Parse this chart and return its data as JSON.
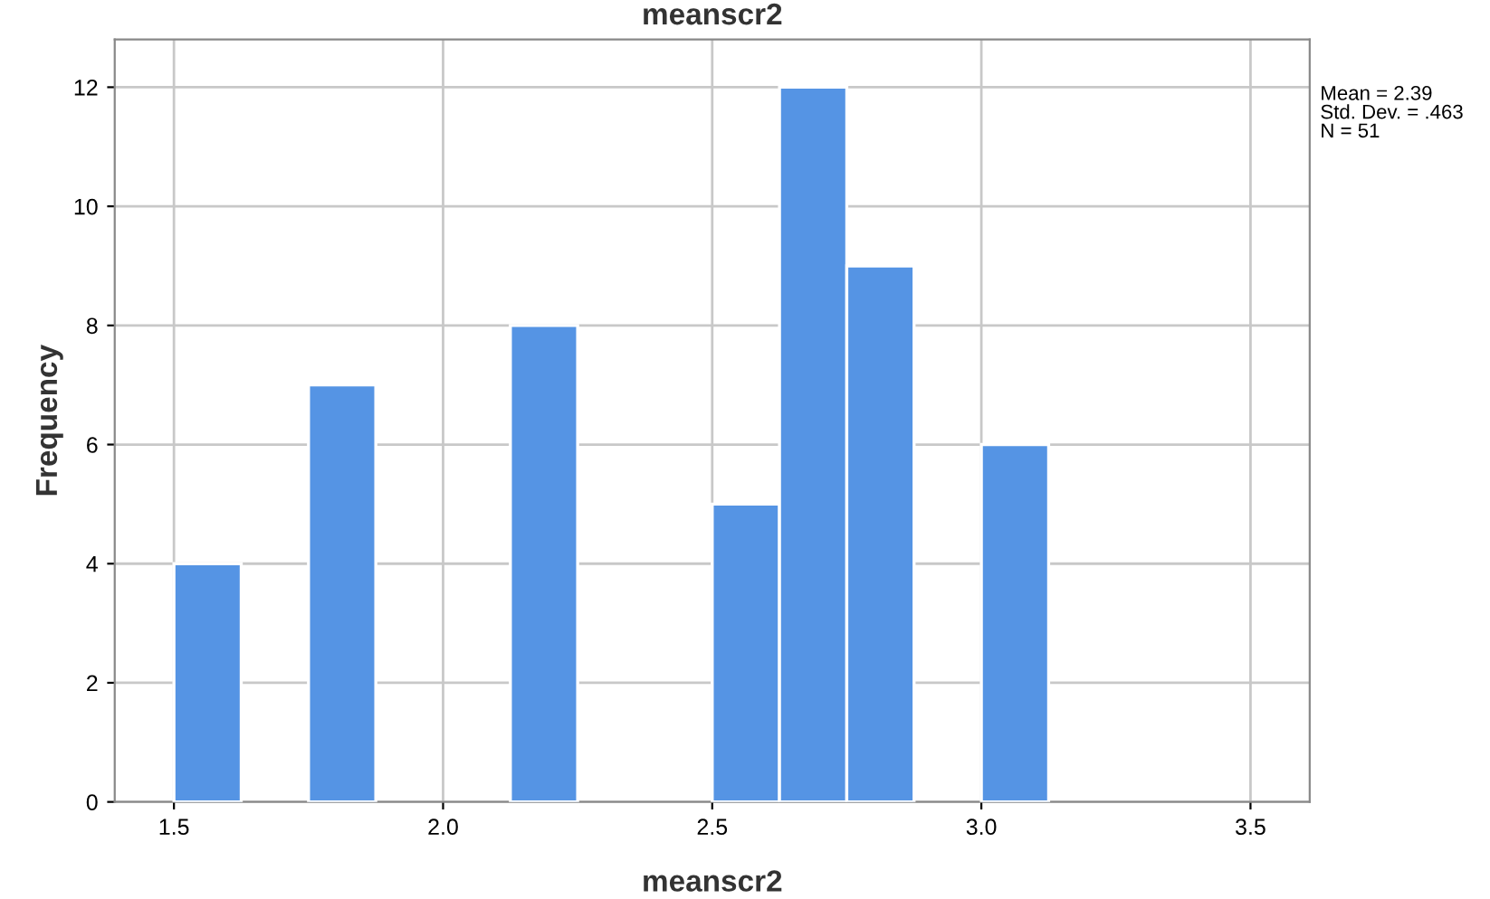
{
  "chart_data": {
    "type": "histogram",
    "title": "meanscr2",
    "xlabel": "meanscr2",
    "ylabel": "Frequency",
    "bins": [
      1.5,
      1.625,
      1.75,
      1.875,
      2.0,
      2.125,
      2.25,
      2.375,
      2.5,
      2.625,
      2.75,
      2.875,
      3.0,
      3.125
    ],
    "values": [
      4,
      0,
      7,
      0,
      0,
      8,
      0,
      0,
      5,
      12,
      9,
      0,
      6
    ],
    "color": "#5594e4",
    "xlim": [
      1.39,
      3.61
    ],
    "xticks": [
      1.5,
      {
        "value": 2.0,
        "label": "2.0"
      },
      2.5,
      {
        "value": 3.0,
        "label": "3.0"
      },
      3.5
    ],
    "ylim": [
      0,
      12.8
    ],
    "yticks": [
      0,
      2,
      4,
      6,
      8,
      10,
      12
    ],
    "grid": true,
    "annotations": [
      "Mean = 2.39",
      "Std. Dev. = .463",
      "N = 51"
    ]
  }
}
